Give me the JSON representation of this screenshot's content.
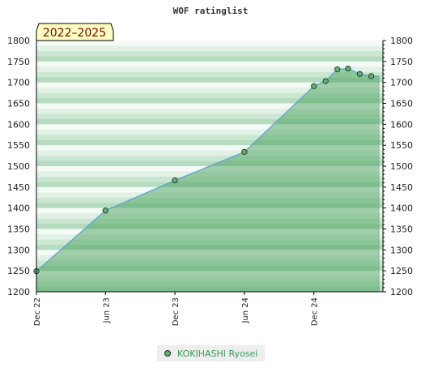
{
  "chart_data": {
    "type": "area",
    "title": "WOF ratinglist",
    "period_label": "2022–2025",
    "x_start": "2022-12-01",
    "x_end": "2025-06-01",
    "x_ticks": [
      {
        "label": "Dec 22",
        "date": "2022-12-01"
      },
      {
        "label": "Jun 23",
        "date": "2023-06-01"
      },
      {
        "label": "Dec 23",
        "date": "2023-12-01"
      },
      {
        "label": "Jun 24",
        "date": "2024-06-01"
      },
      {
        "label": "Dec 24",
        "date": "2024-12-01"
      }
    ],
    "ylim": [
      1200,
      1800
    ],
    "y_ticks": [
      1200,
      1250,
      1300,
      1350,
      1400,
      1450,
      1500,
      1550,
      1600,
      1650,
      1700,
      1750,
      1800
    ],
    "series": [
      {
        "name": "KOKIHASHI Ryosei",
        "color": "#5fae6f",
        "points": [
          {
            "date": "2022-12-01",
            "value": 1249
          },
          {
            "date": "2023-06-01",
            "value": 1394
          },
          {
            "date": "2023-12-01",
            "value": 1466
          },
          {
            "date": "2024-06-01",
            "value": 1534
          },
          {
            "date": "2024-12-01",
            "value": 1691
          },
          {
            "date": "2025-01-01",
            "value": 1703
          },
          {
            "date": "2025-02-01",
            "value": 1731
          },
          {
            "date": "2025-03-01",
            "value": 1733
          },
          {
            "date": "2025-04-01",
            "value": 1720
          },
          {
            "date": "2025-05-01",
            "value": 1715
          }
        ]
      }
    ],
    "legend": "bottom-center",
    "grid": true
  }
}
